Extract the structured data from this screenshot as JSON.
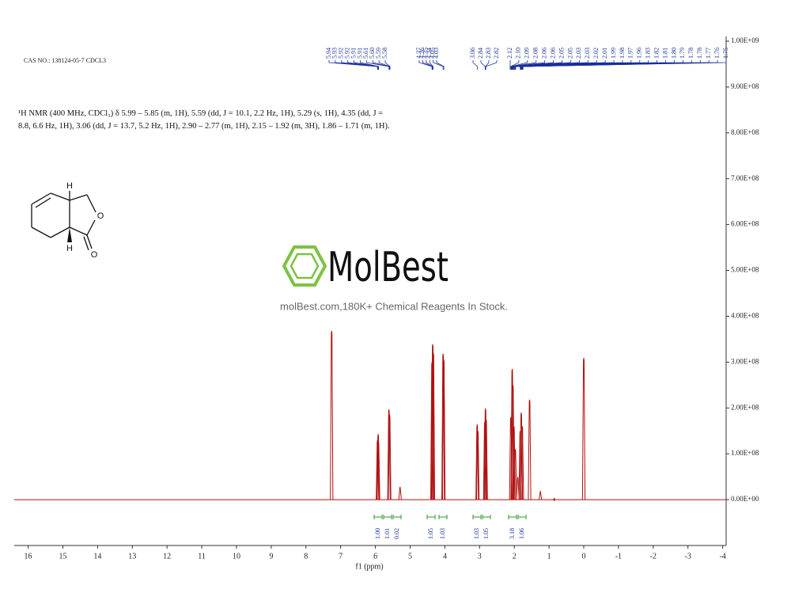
{
  "chart_data": {
    "type": "spectrum",
    "cas_note": "CAS NO.: 138124-05-7 CDCL3",
    "description": "¹H NMR (400 MHz, CDCl₃) δ 5.99 – 5.85 (m, 1H), 5.59 (dd, J = 10.1, 2.2 Hz, 1H), 5.29 (s, 1H), 4.35 (dd, J = 8.8, 6.6 Hz, 1H), 3.06 (dd, J = 13.7, 5.2 Hz, 1H), 2.90 – 2.77 (m, 1H), 2.15 – 1.92 (m, 3H), 1.86 – 1.71 (m, 1H).",
    "logo": "MolBest",
    "tagline": "molBest.com,180K+ Chemical Reagents In Stock.",
    "structure_atoms": [
      "H",
      "O",
      "H",
      "O"
    ],
    "xlabel": "f1 (ppm)",
    "color": "#b01010",
    "label_color": "#1a2f9a",
    "xlim": [
      16.4,
      -4.1
    ],
    "xticks": [
      16,
      15,
      14,
      13,
      12,
      11,
      10,
      9,
      8,
      7,
      6,
      5,
      4,
      3,
      2,
      1,
      0,
      -1,
      -2,
      -3,
      -4
    ],
    "ylim": [
      -100000000,
      1000000000
    ],
    "yticks": [
      {
        "value": 0,
        "label": "0.00E+00"
      },
      {
        "value": 100000000,
        "label": "1.00E+08"
      },
      {
        "value": 200000000,
        "label": "2.00E+08"
      },
      {
        "value": 300000000,
        "label": "3.00E+08"
      },
      {
        "value": 400000000,
        "label": "4.00E+08"
      },
      {
        "value": 500000000,
        "label": "5.00E+08"
      },
      {
        "value": 600000000,
        "label": "6.00E+08"
      },
      {
        "value": 700000000,
        "label": "7.00E+08"
      },
      {
        "value": 800000000,
        "label": "8.00E+08"
      },
      {
        "value": 900000000,
        "label": "9.00E+08"
      },
      {
        "value": 1000000000,
        "label": "1.00E+09"
      }
    ],
    "x": [
      7.26,
      5.94,
      5.92,
      5.91,
      5.61,
      5.59,
      5.29,
      4.37,
      4.35,
      4.33,
      4.05,
      4.03,
      3.07,
      3.05,
      2.85,
      2.83,
      2.81,
      2.1,
      2.06,
      2.04,
      2.01,
      1.97,
      1.9,
      1.83,
      1.8,
      1.77,
      1.56,
      1.25,
      0.85,
      0.0
    ],
    "values": [
      368000000,
      130000000,
      143000000,
      125000000,
      197000000,
      185000000,
      28000000,
      300000000,
      339000000,
      320000000,
      318000000,
      305000000,
      164000000,
      150000000,
      170000000,
      199000000,
      175000000,
      180000000,
      285000000,
      250000000,
      160000000,
      110000000,
      50000000,
      150000000,
      190000000,
      160000000,
      218000000,
      19000000,
      4000000,
      309000000
    ],
    "peak_labels": [
      5.94,
      5.93,
      5.92,
      5.92,
      5.91,
      5.91,
      5.61,
      {
        "value": 5.6,
        "label": "5.60"
      },
      5.59,
      5.58,
      4.37,
      4.36,
      4.35,
      4.34,
      4.05,
      4.03,
      3.06,
      2.84,
      2.83,
      2.82,
      2.12,
      {
        "value": 2.1,
        "label": "2.10"
      },
      2.09,
      2.08,
      2.06,
      2.06,
      2.05,
      2.05,
      2.03,
      2.03,
      2.02,
      2.01,
      1.99,
      1.98,
      1.97,
      1.96,
      1.83,
      1.82,
      1.81,
      {
        "value": 1.8,
        "label": "1.80"
      },
      1.79,
      1.78,
      1.78,
      1.77,
      1.76,
      1.75
    ],
    "integrals": [
      "1.00",
      "1.01",
      "0.02",
      "1.05",
      "1.03",
      "1.03",
      "1.05",
      "3.18",
      "1.06"
    ]
  }
}
